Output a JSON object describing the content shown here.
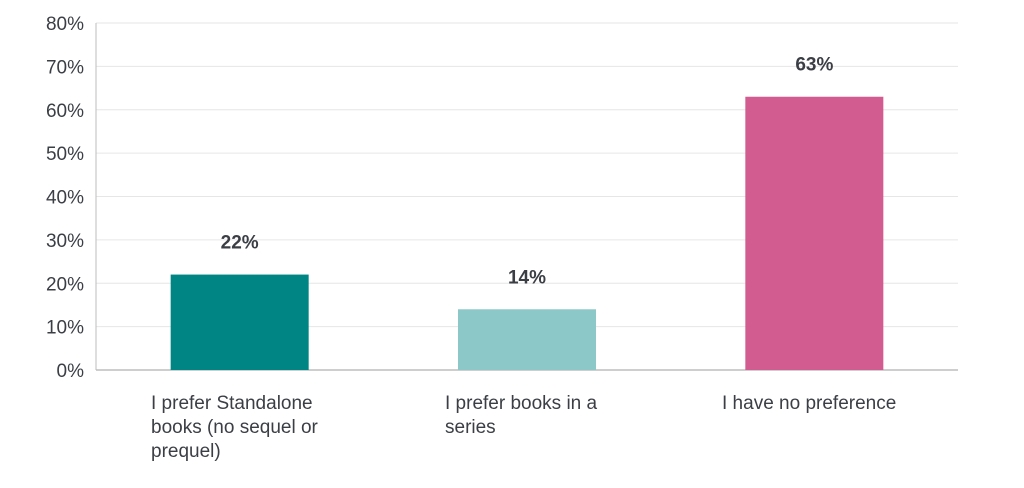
{
  "chart_data": {
    "type": "bar",
    "title": "",
    "xlabel": "",
    "ylabel": "",
    "ylim": [
      0,
      80
    ],
    "yticks": [
      0,
      10,
      20,
      30,
      40,
      50,
      60,
      70,
      80
    ],
    "ytick_suffix": "%",
    "grid": true,
    "categories": [
      "I prefer Standalone books (no sequel or prequel)",
      "I prefer books in a series",
      "I have no preference"
    ],
    "values": [
      22,
      14,
      63
    ],
    "data_labels": [
      "22%",
      "14%",
      "63%"
    ],
    "colors": [
      "#008585",
      "#8cc8c8",
      "#d25c8f"
    ],
    "grid_color": "#e6e6e6",
    "axis_color": "#bdbdbd",
    "text_color": "#3b3f45"
  }
}
